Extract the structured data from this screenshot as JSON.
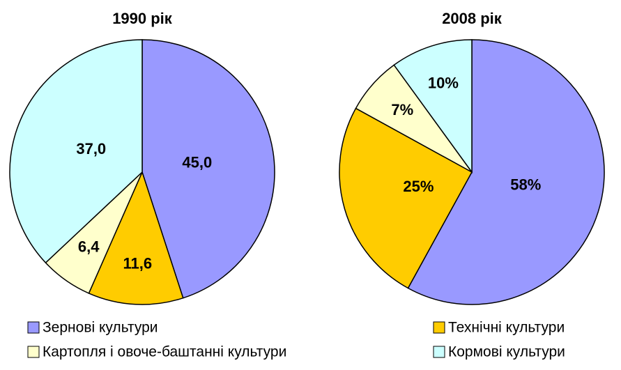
{
  "chart_data": [
    {
      "type": "pie",
      "title": "1990 рік",
      "categories": [
        "Зернові культури",
        "Технічні культури",
        "Картопля і овоче-баштанні культури",
        "Кормові культури"
      ],
      "values": [
        45.0,
        11.6,
        6.4,
        37.0
      ],
      "value_labels": [
        "45,0",
        "11,6",
        "6,4",
        "37,0"
      ],
      "colors": [
        "#9999ff",
        "#ffcc00",
        "#ffffcc",
        "#ccffff"
      ]
    },
    {
      "type": "pie",
      "title": "2008 рік",
      "categories": [
        "Зернові культури",
        "Технічні культури",
        "Картопля і овоче-баштанні культури",
        "Кормові культури"
      ],
      "values": [
        58,
        25,
        7,
        10
      ],
      "value_labels": [
        "58%",
        "25%",
        "7%",
        "10%"
      ],
      "colors": [
        "#9999ff",
        "#ffcc00",
        "#ffffcc",
        "#ccffff"
      ]
    }
  ]
}
